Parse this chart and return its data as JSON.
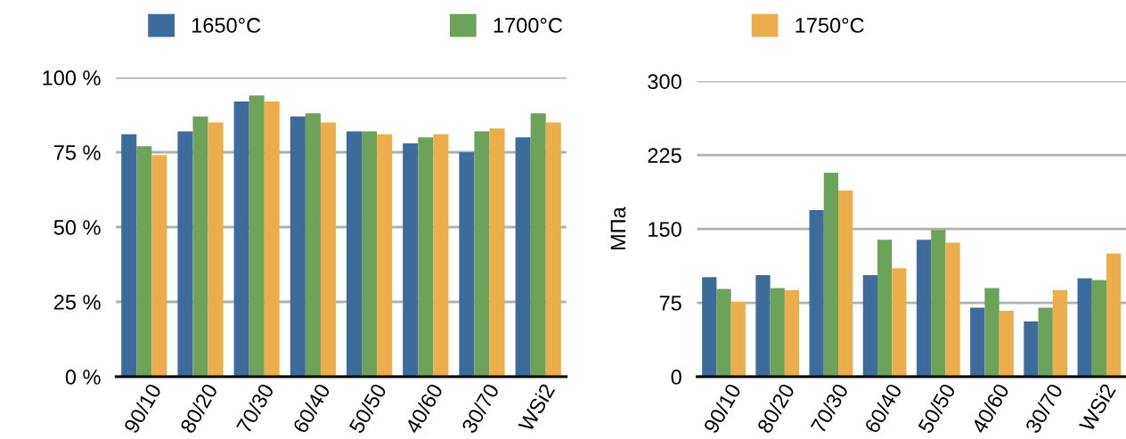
{
  "chart_data": [
    {
      "type": "bar",
      "categories": [
        "90/10",
        "80/20",
        "70/30",
        "60/40",
        "50/50",
        "40/60",
        "30/70",
        "WSi2"
      ],
      "series": [
        {
          "name": "1650°C",
          "color": "#3d6b9c",
          "values": [
            81,
            82,
            92,
            87,
            82,
            78,
            75,
            80
          ]
        },
        {
          "name": "1700°C",
          "color": "#6ca358",
          "values": [
            77,
            87,
            94,
            88,
            82,
            80,
            82,
            88
          ]
        },
        {
          "name": "1750°C",
          "color": "#ebae4b",
          "values": [
            74,
            85,
            92,
            85,
            81,
            81,
            83,
            85
          ]
        }
      ],
      "ylim": [
        0,
        100
      ],
      "yticks": [
        {
          "value": 0,
          "label": "0 %"
        },
        {
          "value": 25,
          "label": "25 %"
        },
        {
          "value": 50,
          "label": "50 %"
        },
        {
          "value": 75,
          "label": "75 %"
        },
        {
          "value": 100,
          "label": "100 %"
        }
      ],
      "grid": "y",
      "legend": "top"
    },
    {
      "type": "bar",
      "categories": [
        "90/10",
        "80/20",
        "70/30",
        "60/40",
        "50/50",
        "40/60",
        "30/70",
        "WSi2"
      ],
      "ylabel": "МПа",
      "series": [
        {
          "color": "#3d6b9c",
          "values": [
            101,
            103,
            169,
            103,
            139,
            70,
            56,
            100
          ]
        },
        {
          "color": "#6ca358",
          "values": [
            89,
            90,
            207,
            139,
            149,
            90,
            70,
            98
          ]
        },
        {
          "color": "#ebae4b",
          "values": [
            76,
            88,
            189,
            110,
            136,
            67,
            88,
            125
          ]
        }
      ],
      "ylim": [
        0,
        300
      ],
      "yticks": [
        0,
        75,
        150,
        225,
        300
      ],
      "grid": "y",
      "legend": false
    }
  ]
}
